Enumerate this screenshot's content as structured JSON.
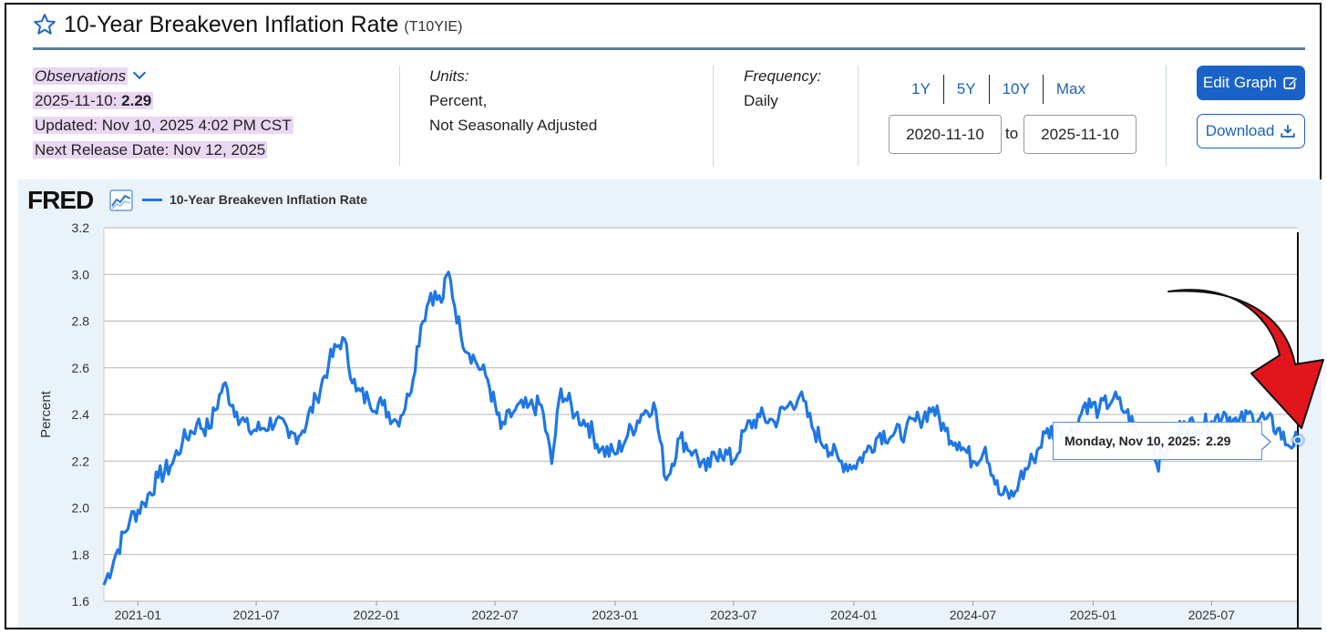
{
  "header": {
    "title": "10-Year Breakeven Inflation Rate",
    "series_id": "(T10YIE)"
  },
  "meta": {
    "observations_label": "Observations",
    "latest_date": "2025-11-10:",
    "latest_value": "2.29",
    "updated": "Updated: Nov 10, 2025 4:02 PM CST",
    "next_release": "Next Release Date: Nov 12, 2025",
    "units_label": "Units:",
    "units_line1": "Percent,",
    "units_line2": "Not Seasonally Adjusted",
    "frequency_label": "Frequency:",
    "frequency_value": "Daily"
  },
  "range_buttons": [
    "1Y",
    "5Y",
    "10Y",
    "Max"
  ],
  "date_range": {
    "start": "2020-11-10",
    "to_label": "to",
    "end": "2025-11-10"
  },
  "actions": {
    "edit_label": "Edit Graph",
    "download_label": "Download"
  },
  "brand": {
    "logo_text": "FRED"
  },
  "tooltip": {
    "label": "Monday, Nov 10, 2025:",
    "value": "2.29"
  },
  "colors": {
    "series": "#1f77e4",
    "accent": "#1a62c8",
    "annotation_arrow": "#e3151c"
  },
  "chart_data": {
    "type": "line",
    "title": "10-Year Breakeven Inflation Rate",
    "legend": "10-Year Breakeven Inflation Rate",
    "ylabel": "Percent",
    "xlabel": "",
    "ylim": [
      1.6,
      3.2
    ],
    "yticks": [
      1.6,
      1.8,
      2.0,
      2.2,
      2.4,
      2.6,
      2.8,
      3.0,
      3.2
    ],
    "xlim": [
      "2020-11-10",
      "2025-11-10"
    ],
    "xticks": [
      "2021-01",
      "2021-07",
      "2022-01",
      "2022-07",
      "2023-01",
      "2023-07",
      "2024-01",
      "2024-07",
      "2025-01",
      "2025-07"
    ],
    "grid": true,
    "series": [
      {
        "name": "10-Year Breakeven Inflation Rate",
        "x": [
          "2020-11-10",
          "2020-12-01",
          "2020-12-20",
          "2021-01-10",
          "2021-02-01",
          "2021-02-20",
          "2021-03-10",
          "2021-04-01",
          "2021-04-20",
          "2021-05-12",
          "2021-06-01",
          "2021-06-20",
          "2021-07-10",
          "2021-08-01",
          "2021-08-20",
          "2021-09-10",
          "2021-10-01",
          "2021-10-20",
          "2021-11-10",
          "2021-12-01",
          "2021-12-20",
          "2022-01-10",
          "2022-02-01",
          "2022-02-20",
          "2022-03-10",
          "2022-03-25",
          "2022-04-10",
          "2022-04-21",
          "2022-05-10",
          "2022-06-01",
          "2022-06-20",
          "2022-07-10",
          "2022-08-01",
          "2022-08-20",
          "2022-09-10",
          "2022-09-26",
          "2022-10-10",
          "2022-11-01",
          "2022-11-20",
          "2022-12-10",
          "2023-01-01",
          "2023-01-20",
          "2023-02-10",
          "2023-03-01",
          "2023-03-20",
          "2023-04-10",
          "2023-05-01",
          "2023-05-20",
          "2023-06-10",
          "2023-07-01",
          "2023-07-20",
          "2023-08-10",
          "2023-09-01",
          "2023-09-20",
          "2023-10-10",
          "2023-11-01",
          "2023-11-20",
          "2023-12-10",
          "2024-01-01",
          "2024-01-20",
          "2024-02-10",
          "2024-03-01",
          "2024-03-20",
          "2024-04-10",
          "2024-05-01",
          "2024-05-20",
          "2024-06-10",
          "2024-07-01",
          "2024-07-20",
          "2024-08-10",
          "2024-09-01",
          "2024-09-10",
          "2024-10-01",
          "2024-10-20",
          "2024-11-10",
          "2024-12-01",
          "2024-12-20",
          "2025-01-10",
          "2025-02-01",
          "2025-02-20",
          "2025-03-10",
          "2025-04-01",
          "2025-04-08",
          "2025-05-01",
          "2025-05-20",
          "2025-06-10",
          "2025-07-01",
          "2025-07-20",
          "2025-08-10",
          "2025-09-01",
          "2025-09-20",
          "2025-10-10",
          "2025-10-25",
          "2025-11-10"
        ],
        "values": [
          1.67,
          1.82,
          1.95,
          2.02,
          2.13,
          2.18,
          2.28,
          2.36,
          2.34,
          2.53,
          2.41,
          2.33,
          2.34,
          2.38,
          2.3,
          2.33,
          2.47,
          2.62,
          2.73,
          2.5,
          2.46,
          2.44,
          2.37,
          2.48,
          2.78,
          2.92,
          2.88,
          3.01,
          2.74,
          2.63,
          2.55,
          2.34,
          2.42,
          2.43,
          2.44,
          2.19,
          2.51,
          2.4,
          2.36,
          2.25,
          2.23,
          2.31,
          2.4,
          2.45,
          2.12,
          2.3,
          2.24,
          2.16,
          2.25,
          2.2,
          2.34,
          2.39,
          2.37,
          2.43,
          2.48,
          2.33,
          2.27,
          2.2,
          2.18,
          2.24,
          2.32,
          2.31,
          2.33,
          2.38,
          2.43,
          2.33,
          2.28,
          2.2,
          2.26,
          2.06,
          2.05,
          2.12,
          2.21,
          2.32,
          2.34,
          2.32,
          2.45,
          2.42,
          2.47,
          2.41,
          2.32,
          2.3,
          2.19,
          2.28,
          2.37,
          2.34,
          2.37,
          2.41,
          2.36,
          2.4,
          2.38,
          2.34,
          2.27,
          2.29
        ]
      }
    ]
  }
}
